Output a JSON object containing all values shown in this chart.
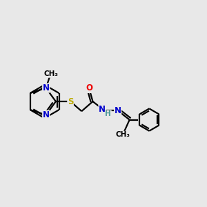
{
  "bg_color": "#e8e8e8",
  "bond_color": "#000000",
  "N_color": "#0000cc",
  "O_color": "#ee0000",
  "S_color": "#bbaa00",
  "H_color": "#4d9999",
  "line_width": 1.6,
  "font_size": 8.5,
  "fig_width": 3.0,
  "fig_height": 3.0,
  "xlim": [
    0,
    10
  ],
  "ylim": [
    0,
    10
  ]
}
